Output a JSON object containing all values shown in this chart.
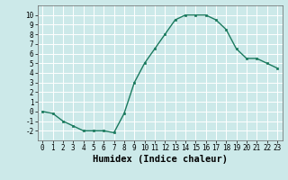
{
  "x": [
    0,
    1,
    2,
    3,
    4,
    5,
    6,
    7,
    8,
    9,
    10,
    11,
    12,
    13,
    14,
    15,
    16,
    17,
    18,
    19,
    20,
    21,
    22,
    23
  ],
  "y": [
    0.0,
    -0.2,
    -1.0,
    -1.5,
    -2.0,
    -2.0,
    -2.0,
    -2.2,
    -0.2,
    3.0,
    5.0,
    6.5,
    8.0,
    9.5,
    10.0,
    10.0,
    10.0,
    9.5,
    8.5,
    6.5,
    5.5,
    5.5,
    5.0,
    4.5
  ],
  "line_color": "#1a7a5e",
  "marker": "s",
  "markersize": 2.0,
  "linewidth": 1.0,
  "xlabel": "Humidex (Indice chaleur)",
  "xlim": [
    -0.5,
    23.5
  ],
  "ylim": [
    -3,
    11
  ],
  "yticks": [
    -2,
    -1,
    0,
    1,
    2,
    3,
    4,
    5,
    6,
    7,
    8,
    9,
    10
  ],
  "xticks": [
    0,
    1,
    2,
    3,
    4,
    5,
    6,
    7,
    8,
    9,
    10,
    11,
    12,
    13,
    14,
    15,
    16,
    17,
    18,
    19,
    20,
    21,
    22,
    23
  ],
  "bg_color": "#cce9e9",
  "grid_color": "#ffffff",
  "xlabel_fontsize": 7.5,
  "tick_fontsize": 5.5
}
